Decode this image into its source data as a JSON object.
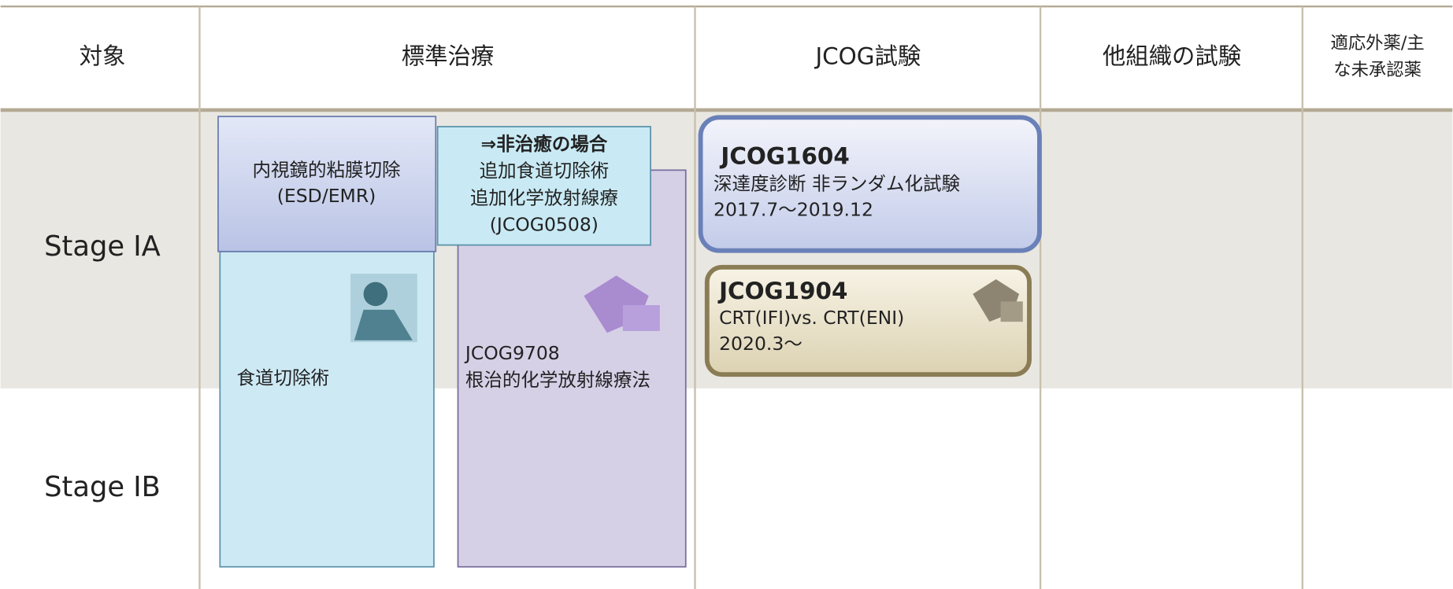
{
  "header": {
    "columns": [
      "対象",
      "標準治療",
      "JCOG試験",
      "他組織の試験"
    ],
    "last_column": [
      "適応外薬/主",
      "な未承認薬"
    ]
  },
  "rows": [
    "Stage IA",
    "Stage IB"
  ],
  "standard": {
    "endoscopic": [
      "内視鏡的粘膜切除",
      "(ESD/EMR)"
    ],
    "non_curative": {
      "title": "⇒非治癒の場合",
      "lines": [
        "追加食道切除術",
        "追加化学放射線療",
        "(JCOG0508)"
      ]
    },
    "surgery": "食道切除術",
    "crt": [
      "JCOG9708",
      "根治的化学放射線療法"
    ]
  },
  "trials": [
    {
      "name": "JCOG1604",
      "lines": [
        "深達度診断 非ランダム化試験",
        "2017.7～2019.12"
      ]
    },
    {
      "name": "JCOG1904",
      "lines": [
        "CRT(IFI)vs. CRT(ENI)",
        "2020.3～"
      ]
    }
  ]
}
